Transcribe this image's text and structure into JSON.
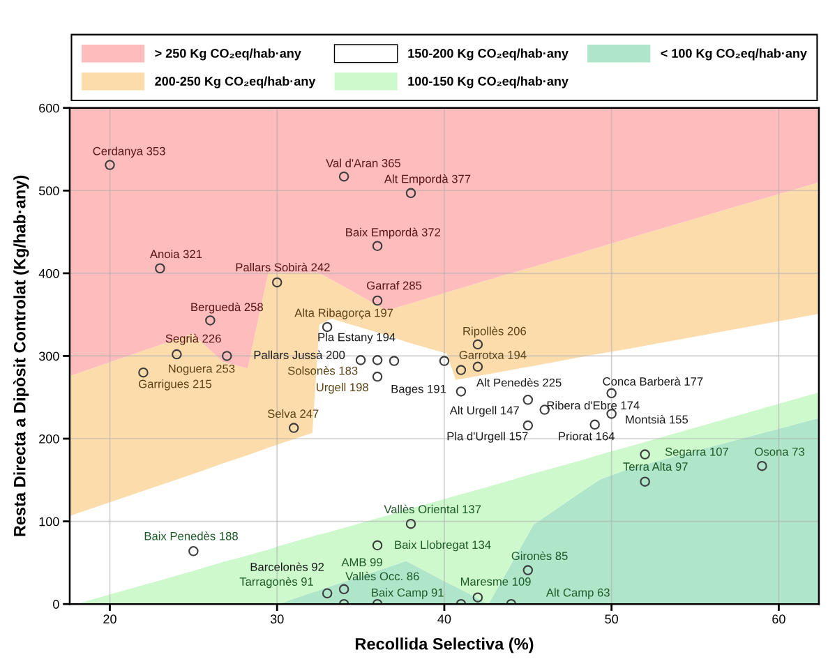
{
  "chart_data": {
    "type": "scatter",
    "xlabel": "Recollida Selectiva (%)",
    "ylabel": "Resta Directa a Dipòsit Controlat (Kg/hab·any)",
    "xlim": [
      17.6,
      62.4
    ],
    "ylim": [
      0,
      600
    ],
    "xticks": [
      20,
      30,
      40,
      50,
      60
    ],
    "yticks": [
      0,
      100,
      200,
      300,
      400,
      500,
      600
    ],
    "grid": true,
    "legend": "top",
    "stacked": true,
    "x": [
      17.6,
      17.94,
      24.94,
      26.76,
      28.24,
      29.48,
      30.05,
      32.11,
      32.44,
      32.53,
      33.27,
      36.56,
      37.72,
      40.15,
      40.68,
      42.64,
      45.34,
      48.22,
      48.51,
      49.34,
      51.11,
      62.4
    ],
    "series": [
      {
        "type": "area",
        "name": "< 100 Kg CO₂eq/hab·any",
        "color": "#afe5c9",
        "values": [
          0,
          0,
          0,
          0,
          0,
          0,
          0,
          14,
          16,
          17,
          22,
          44,
          52,
          26,
          21,
          0,
          96,
          136,
          140,
          151,
          164,
          225
        ]
      },
      {
        "type": "area",
        "name": "100-150 Kg CO₂eq/hab·any",
        "color": "#cdf9cd",
        "values": [
          0,
          0,
          40,
          51,
          59,
          66,
          70,
          68,
          68,
          67,
          66,
          63,
          62,
          102,
          110,
          142,
          62,
          38,
          36,
          30,
          27,
          31
        ]
      },
      {
        "type": "area",
        "name": "150-200 Kg CO₂eq/hab·any",
        "color": "#ffffff",
        "values": [
          106,
          109,
          117,
          119,
          121,
          123,
          123,
          125,
          226,
          254,
          257,
          218,
          203,
          175,
          140,
          136,
          130,
          125,
          124,
          122,
          118,
          95
        ]
      },
      {
        "type": "area",
        "name": "200-250 Kg CO₂eq/hab·any",
        "color": "#fddcac",
        "values": [
          170,
          169,
          170,
          123,
          105,
          212,
          208,
          194,
          91,
          62,
          47,
          30,
          45,
          74,
          109,
          114,
          120,
          126,
          127,
          129,
          134,
          159
        ]
      },
      {
        "type": "area",
        "name": "> 250 Kg CO₂eq/hab·any",
        "color": "#ffbcbc",
        "values": [
          324,
          322,
          273,
          307,
          315,
          199,
          199,
          199,
          199,
          200,
          208,
          245,
          238,
          223,
          220,
          208,
          192,
          175,
          173,
          168,
          157,
          90
        ]
      },
      {
        "marker": "circle",
        "color": "#3c3c3c",
        "x": [
          20,
          34,
          38,
          36,
          23,
          30,
          36,
          26,
          33,
          24,
          27,
          22,
          35,
          36,
          37,
          40,
          42,
          41,
          42,
          36,
          41,
          45,
          46,
          45,
          50,
          50,
          49,
          31,
          52,
          59,
          52,
          38,
          36,
          25,
          45,
          33,
          34,
          42,
          34,
          36,
          41,
          44
        ],
        "values": [
          531,
          517,
          497,
          433,
          406,
          389,
          367,
          343,
          335,
          302,
          300,
          280,
          295,
          295,
          294,
          294,
          314,
          283,
          287,
          275,
          257,
          247,
          235,
          216,
          255,
          230,
          217,
          213,
          181,
          167,
          148,
          97,
          71,
          64,
          41,
          13,
          18,
          8,
          0,
          0,
          0,
          0
        ]
      }
    ],
    "annotations": [
      "Cerdanya 353",
      "Val d'Aran 365",
      "Alt Empordà 377",
      "Baix Empordà 372",
      "Anoia 321",
      "Pallars Sobirà 242",
      "Garraf 285",
      "Berguedà 258",
      "Alta Ribagorça 197",
      "Segrià 226",
      "Pallars Jussà 200",
      "Noguera 253",
      "Garrigues 215",
      "Pla Estany 194",
      "Ripollès 206",
      "Garrotxa 194",
      "Solsonès 183",
      "Urgell 198",
      "Bages 191",
      "Alt Penedès 225",
      "Conca Barberà 177",
      "Alt Urgell 147",
      "Ribera d'Ebre 174",
      "Montsià 155",
      "Pla d'Urgell 157",
      "Priorat 164",
      "Selva 247",
      "Segarra 107",
      "Osona 73",
      "Terra Alta 97",
      "Vallès Oriental 137",
      "Baix Llobregat 134",
      "Baix Penedès 188",
      "Barcelonès 92",
      "AMB 99",
      "Tarragonès 91",
      "Vallès Occ. 86",
      "Gironès 85",
      "Maresme 109",
      "Baix Camp 91",
      "Alt Camp 63"
    ]
  }
}
